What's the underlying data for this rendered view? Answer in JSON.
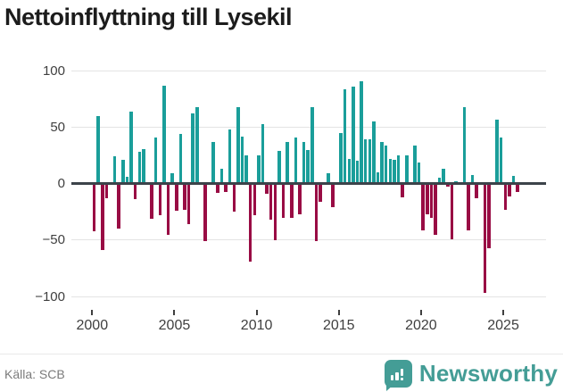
{
  "title": "Nettoinflyttning till Lysekil",
  "source": "Källa: SCB",
  "brand": "Newsworthy",
  "colors": {
    "positive_bar": "#1a9e9a",
    "negative_bar": "#990c44",
    "zero_line": "#3c434a",
    "grid_line": "#e4e4e4",
    "brand_teal": "#449d96"
  },
  "chart_data": {
    "type": "bar",
    "title": "Nettoinflyttning till Lysekil",
    "xlabel": "",
    "ylabel": "",
    "x_unit": "quarter",
    "x_range": [
      "2000 Q1",
      "2025 Q4"
    ],
    "ylim": [
      -110,
      110
    ],
    "grid": true,
    "y_ticks": [
      100,
      50,
      0,
      -50,
      -100
    ],
    "y_tick_labels": [
      "100",
      "50",
      "0",
      "−50",
      "−100"
    ],
    "x_ticks": [
      2000,
      2005,
      2010,
      2015,
      2020,
      2025
    ],
    "x_tick_labels": [
      "2000",
      "2005",
      "2010",
      "2015",
      "2020",
      "2025"
    ],
    "values": [
      -42,
      60,
      -59,
      -13,
      0,
      24,
      -40,
      21,
      6,
      64,
      -14,
      28,
      31,
      0,
      -31,
      41,
      -28,
      87,
      -45,
      9,
      -24,
      44,
      -23,
      -36,
      62,
      68,
      0,
      -51,
      0,
      37,
      -8,
      13,
      -7,
      48,
      -25,
      68,
      42,
      25,
      -69,
      -28,
      25,
      53,
      -9,
      -32,
      -50,
      29,
      -30,
      37,
      -30,
      41,
      -27,
      37,
      30,
      68,
      -51,
      -16,
      0,
      9,
      -21,
      0,
      45,
      84,
      22,
      86,
      20,
      91,
      39,
      39,
      55,
      10,
      37,
      34,
      22,
      21,
      25,
      -12,
      25,
      0,
      34,
      19,
      -41,
      -27,
      -30,
      -45,
      5,
      13,
      -3,
      -49,
      2,
      0,
      68,
      -41,
      8,
      -13,
      0,
      -97,
      -57,
      0,
      57,
      41,
      -23,
      -11,
      7,
      -7
    ]
  }
}
